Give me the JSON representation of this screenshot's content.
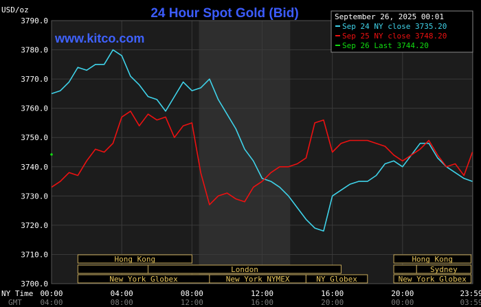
{
  "header": {
    "title": "24 Hour Spot Gold (Bid)",
    "units": "USD/oz",
    "watermark": "www.kitco.com",
    "datetime": "September 26, 2025 00:01"
  },
  "legend": [
    {
      "label": "Sep 24 NY close 3735.20",
      "color": "#3fd3ea"
    },
    {
      "label": "Sep 25 NY close 3748.20",
      "color": "#ee1111"
    },
    {
      "label": "Sep 26 Last 3744.20",
      "color": "#11dd11"
    }
  ],
  "sessions": {
    "row1": [
      {
        "label": "Hong Kong",
        "start": 1.5,
        "end": 8.0
      },
      {
        "label": "Hong Kong",
        "start": 19.5,
        "end": 23.9
      }
    ],
    "row2": [
      {
        "label": "",
        "start": 1.5,
        "end": 5.5
      },
      {
        "label": "London",
        "start": 5.5,
        "end": 16.5
      },
      {
        "label": "",
        "start": 19.5,
        "end": 20.8
      },
      {
        "label": "Sydney",
        "start": 20.8,
        "end": 23.9
      }
    ],
    "row3": [
      {
        "label": "New York Globex",
        "start": 1.5,
        "end": 9.0
      },
      {
        "label": "New York NYMEX",
        "start": 9.0,
        "end": 14.5
      },
      {
        "label": "NY Globex",
        "start": 14.5,
        "end": 18.0
      },
      {
        "label": "New York Globex",
        "start": 19.5,
        "end": 23.9
      }
    ]
  },
  "chart_data": {
    "type": "line",
    "title": "24 Hour Spot Gold (Bid)",
    "ylabel": "USD/oz",
    "xlim": [
      0,
      24
    ],
    "ylim": [
      3700,
      3790
    ],
    "y_ticks": [
      "3700.0",
      "3710.0",
      "3720.0",
      "3730.0",
      "3740.0",
      "3750.0",
      "3760.0",
      "3770.0",
      "3780.0",
      "3790.0"
    ],
    "x_ticks_ny": [
      "00:00",
      "04:00",
      "08:00",
      "12:00",
      "16:00",
      "20:00",
      "23:59"
    ],
    "x_ticks_gmt": [
      "04:00",
      "08:00",
      "12:00",
      "16:00",
      "20:00",
      "00:00",
      "03:59"
    ],
    "x_tick_hours": [
      0,
      4,
      8,
      12,
      16,
      20,
      23.98
    ],
    "nytime_label": "NY Time",
    "gmt_label": "GMT",
    "shaded_region": [
      8.4,
      13.6
    ],
    "grid": true,
    "series": [
      {
        "name": "Sep 24 NY close 3735.20",
        "color": "#3fd3ea",
        "x": [
          0,
          0.5,
          1.0,
          1.5,
          2.0,
          2.5,
          3.0,
          3.5,
          4.0,
          4.5,
          5.0,
          5.5,
          6.0,
          6.5,
          7.0,
          7.5,
          8.0,
          8.5,
          9.0,
          9.5,
          10.0,
          10.5,
          11.0,
          11.5,
          12.0,
          12.5,
          13.0,
          13.5,
          14.0,
          14.5,
          15.0,
          15.5,
          16.0,
          16.5,
          17.0,
          17.5,
          18.0,
          18.5,
          19.0,
          19.5,
          20.0,
          20.5,
          21.0,
          21.5,
          22.0,
          22.5,
          23.0,
          23.5,
          23.98
        ],
        "y": [
          3765,
          3766,
          3769,
          3774,
          3773,
          3775,
          3775,
          3780,
          3778,
          3771,
          3768,
          3764,
          3763,
          3759,
          3764,
          3769,
          3766,
          3767,
          3770,
          3763,
          3758,
          3753,
          3746,
          3742,
          3736,
          3735,
          3733,
          3730,
          3726,
          3722,
          3719,
          3718,
          3730,
          3732,
          3734,
          3735,
          3735,
          3737,
          3741,
          3742,
          3740,
          3744,
          3748,
          3748,
          3743,
          3740,
          3738,
          3736,
          3735
        ]
      },
      {
        "name": "Sep 25 NY close 3748.20",
        "color": "#ee1111",
        "x": [
          0,
          0.5,
          1.0,
          1.5,
          2.0,
          2.5,
          3.0,
          3.5,
          4.0,
          4.5,
          5.0,
          5.5,
          6.0,
          6.5,
          7.0,
          7.5,
          8.0,
          8.5,
          9.0,
          9.5,
          10.0,
          10.5,
          11.0,
          11.5,
          12.0,
          12.5,
          13.0,
          13.5,
          14.0,
          14.5,
          15.0,
          15.5,
          16.0,
          16.5,
          17.0,
          17.5,
          18.0,
          18.5,
          19.0,
          19.5,
          20.0,
          20.5,
          21.0,
          21.5,
          22.0,
          22.5,
          23.0,
          23.5,
          23.98
        ],
        "y": [
          3733,
          3735,
          3738,
          3737,
          3742,
          3746,
          3745,
          3748,
          3757,
          3759,
          3754,
          3758,
          3756,
          3757,
          3750,
          3754,
          3755,
          3738,
          3727,
          3730,
          3731,
          3729,
          3728,
          3733,
          3735,
          3738,
          3740,
          3740,
          3741,
          3743,
          3755,
          3756,
          3745,
          3748,
          3749,
          3749,
          3749,
          3748,
          3747,
          3744,
          3742,
          3744,
          3746,
          3749,
          3744,
          3740,
          3741,
          3737,
          3745
        ]
      },
      {
        "name": "Sep 26 Last 3744.20",
        "color": "#11dd11",
        "x": [
          0
        ],
        "y": [
          3744.2
        ]
      }
    ]
  }
}
